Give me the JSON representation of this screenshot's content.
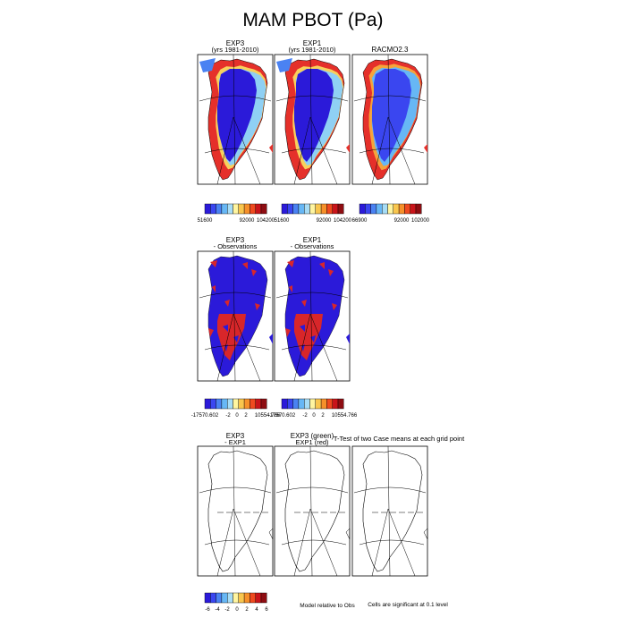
{
  "title": "MAM PBOT (Pa)",
  "palette": [
    "#2b1ad9",
    "#3a46f0",
    "#4a82f2",
    "#67b7f5",
    "#a6dcf6",
    "#fff5a0",
    "#f9c64e",
    "#f6902a",
    "#ef4a1f",
    "#c9141a",
    "#8e0d12"
  ],
  "row1": {
    "panels": [
      {
        "title_line1": "EXP3",
        "title_line2": "(yrs 1981-2010)"
      },
      {
        "title_line1": "EXP1",
        "title_line2": "(yrs 1981-2010)"
      },
      {
        "title_line1": "RACMO2.3",
        "title_line2": ""
      }
    ],
    "colorbars": [
      {
        "labels": [
          "51600",
          "92000",
          "104200"
        ]
      },
      {
        "labels": [
          "51600",
          "92000",
          "104200"
        ]
      },
      {
        "labels": [
          "66900",
          "92000",
          "102000"
        ]
      }
    ]
  },
  "row2": {
    "panels": [
      {
        "title_line1": "EXP3",
        "title_line2": "- Observations"
      },
      {
        "title_line1": "EXP1",
        "title_line2": "- Observations"
      }
    ],
    "colorbars": [
      {
        "labels": [
          "-17570.602",
          "-2",
          "0",
          "2",
          "10554.766"
        ]
      },
      {
        "labels": [
          "-17570.602",
          "-2",
          "0",
          "2",
          "10554.766"
        ]
      }
    ]
  },
  "row3": {
    "panels": [
      {
        "title_line1": "EXP3",
        "title_line2": "- EXP1"
      },
      {
        "title_line1": "EXP3 (green)",
        "title_line2": "EXP1 (red)"
      },
      {
        "title_line1": "",
        "title_line2": ""
      }
    ],
    "ttest_title": "T-Test of two Case means at each grid point",
    "colorbar": {
      "labels": [
        "-6",
        "-4",
        "-2",
        "0",
        "2",
        "4",
        "6"
      ]
    },
    "note_model": "Model relative to Obs",
    "note_cells": "Cells are significant at 0.1 level"
  },
  "chart_data": [
    {
      "type": "heatmap",
      "name": "EXP3 (yrs 1981-2010)",
      "colorbar_range": [
        51600,
        104200
      ],
      "colorbar_ticks": [
        51600,
        92000,
        104200
      ]
    },
    {
      "type": "heatmap",
      "name": "EXP1 (yrs 1981-2010)",
      "colorbar_range": [
        51600,
        104200
      ],
      "colorbar_ticks": [
        51600,
        92000,
        104200
      ]
    },
    {
      "type": "heatmap",
      "name": "RACMO2.3",
      "colorbar_range": [
        66900,
        102000
      ],
      "colorbar_ticks": [
        66900,
        92000,
        102000
      ]
    },
    {
      "type": "heatmap",
      "name": "EXP3 - Observations",
      "colorbar_range": [
        -17570.602,
        10554.766
      ],
      "colorbar_ticks": [
        -17570.602,
        -2,
        0,
        2,
        10554.766
      ]
    },
    {
      "type": "heatmap",
      "name": "EXP1 - Observations",
      "colorbar_range": [
        -17570.602,
        10554.766
      ],
      "colorbar_ticks": [
        -17570.602,
        -2,
        0,
        2,
        10554.766
      ]
    },
    {
      "type": "heatmap",
      "name": "EXP3 - EXP1",
      "colorbar_ticks": [
        -6,
        -4,
        -2,
        0,
        2,
        4,
        6
      ]
    },
    {
      "type": "heatmap",
      "name": "EXP3 (green) EXP1 (red)"
    },
    {
      "type": "heatmap",
      "name": "T-Test of two Case means at each grid point"
    }
  ]
}
